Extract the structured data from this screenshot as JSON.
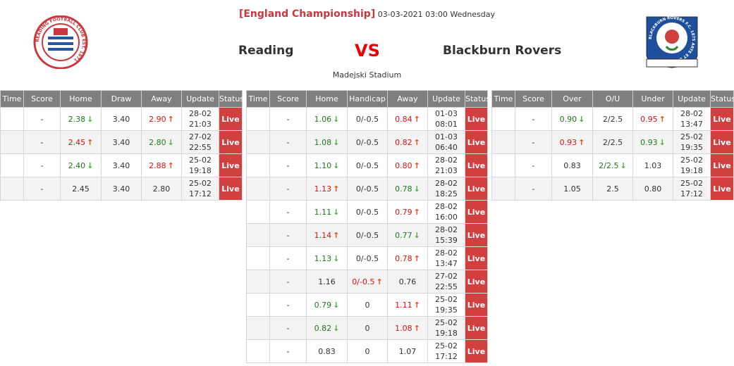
{
  "match": {
    "league": "[England Championship]",
    "datetime": "03-03-2021 03:00 Wednesday",
    "home": "Reading",
    "vs": "VS",
    "away": "Blackburn Rovers",
    "venue": "Madejski Stadium",
    "home_logo_text": "READING FOOTBALL CLUB EST. 1871",
    "away_logo_text": "BLACKBURN ROVERS F.C. 1875 ARTE ET LABORE"
  },
  "colors": {
    "up": "#e01010",
    "down": "#1f7a1f",
    "live": "#d23f3f",
    "header": "#7f7f7f",
    "league": "#c8383e"
  },
  "tables": [
    {
      "name": "1x2",
      "headers": [
        "Time",
        "Score",
        "Home",
        "Draw",
        "Away",
        "Update",
        "Status"
      ],
      "rows": [
        [
          [
            "",
            ""
          ],
          [
            "-",
            ""
          ],
          [
            "2.38",
            "down"
          ],
          [
            "3.40",
            ""
          ],
          [
            "2.90",
            "up"
          ],
          [
            "28-02|21:03",
            ""
          ],
          [
            "Live",
            ""
          ]
        ],
        [
          [
            "",
            ""
          ],
          [
            "-",
            ""
          ],
          [
            "2.45",
            "up"
          ],
          [
            "3.40",
            ""
          ],
          [
            "2.80",
            "down"
          ],
          [
            "27-02|22:55",
            ""
          ],
          [
            "Live",
            ""
          ]
        ],
        [
          [
            "",
            ""
          ],
          [
            "-",
            ""
          ],
          [
            "2.40",
            "down"
          ],
          [
            "3.40",
            ""
          ],
          [
            "2.88",
            "up"
          ],
          [
            "25-02|19:18",
            ""
          ],
          [
            "Live",
            ""
          ]
        ],
        [
          [
            "",
            ""
          ],
          [
            "-",
            ""
          ],
          [
            "2.45",
            ""
          ],
          [
            "3.40",
            ""
          ],
          [
            "2.80",
            ""
          ],
          [
            "25-02|17:12",
            ""
          ],
          [
            "Live",
            ""
          ]
        ]
      ]
    },
    {
      "name": "handicap",
      "headers": [
        "Time",
        "Score",
        "Home",
        "Handicap",
        "Away",
        "Update",
        "Status"
      ],
      "rows": [
        [
          [
            "",
            ""
          ],
          [
            "-",
            ""
          ],
          [
            "1.06",
            "down"
          ],
          [
            "0/-0.5",
            ""
          ],
          [
            "0.84",
            "up"
          ],
          [
            "01-03|08:01",
            ""
          ],
          [
            "Live",
            ""
          ]
        ],
        [
          [
            "",
            ""
          ],
          [
            "-",
            ""
          ],
          [
            "1.08",
            "down"
          ],
          [
            "0/-0.5",
            ""
          ],
          [
            "0.82",
            "up"
          ],
          [
            "01-03|06:40",
            ""
          ],
          [
            "Live",
            ""
          ]
        ],
        [
          [
            "",
            ""
          ],
          [
            "-",
            ""
          ],
          [
            "1.10",
            "down"
          ],
          [
            "0/-0.5",
            ""
          ],
          [
            "0.80",
            "up"
          ],
          [
            "28-02|21:03",
            ""
          ],
          [
            "Live",
            ""
          ]
        ],
        [
          [
            "",
            ""
          ],
          [
            "-",
            ""
          ],
          [
            "1.13",
            "up"
          ],
          [
            "0/-0.5",
            ""
          ],
          [
            "0.78",
            "down"
          ],
          [
            "28-02|18:25",
            ""
          ],
          [
            "Live",
            ""
          ]
        ],
        [
          [
            "",
            ""
          ],
          [
            "-",
            ""
          ],
          [
            "1.11",
            "down"
          ],
          [
            "0/-0.5",
            ""
          ],
          [
            "0.79",
            "up"
          ],
          [
            "28-02|16:00",
            ""
          ],
          [
            "Live",
            ""
          ]
        ],
        [
          [
            "",
            ""
          ],
          [
            "-",
            ""
          ],
          [
            "1.14",
            "up"
          ],
          [
            "0/-0.5",
            ""
          ],
          [
            "0.77",
            "down"
          ],
          [
            "28-02|15:39",
            ""
          ],
          [
            "Live",
            ""
          ]
        ],
        [
          [
            "",
            ""
          ],
          [
            "-",
            ""
          ],
          [
            "1.13",
            "down"
          ],
          [
            "0/-0.5",
            ""
          ],
          [
            "0.78",
            "up"
          ],
          [
            "28-02|13:47",
            ""
          ],
          [
            "Live",
            ""
          ]
        ],
        [
          [
            "",
            ""
          ],
          [
            "-",
            ""
          ],
          [
            "1.16",
            ""
          ],
          [
            "0/-0.5",
            "up"
          ],
          [
            "0.76",
            ""
          ],
          [
            "27-02|22:55",
            ""
          ],
          [
            "Live",
            ""
          ]
        ],
        [
          [
            "",
            ""
          ],
          [
            "-",
            ""
          ],
          [
            "0.79",
            "down"
          ],
          [
            "0",
            ""
          ],
          [
            "1.11",
            "up"
          ],
          [
            "25-02|19:35",
            ""
          ],
          [
            "Live",
            ""
          ]
        ],
        [
          [
            "",
            ""
          ],
          [
            "-",
            ""
          ],
          [
            "0.82",
            "down"
          ],
          [
            "0",
            ""
          ],
          [
            "1.08",
            "up"
          ],
          [
            "25-02|19:18",
            ""
          ],
          [
            "Live",
            ""
          ]
        ],
        [
          [
            "",
            ""
          ],
          [
            "-",
            ""
          ],
          [
            "0.83",
            ""
          ],
          [
            "0",
            ""
          ],
          [
            "1.07",
            ""
          ],
          [
            "25-02|17:12",
            ""
          ],
          [
            "Live",
            ""
          ]
        ]
      ]
    },
    {
      "name": "over-under",
      "headers": [
        "Time",
        "Score",
        "Over",
        "O/U",
        "Under",
        "Update",
        "Status"
      ],
      "rows": [
        [
          [
            "",
            ""
          ],
          [
            "-",
            ""
          ],
          [
            "0.90",
            "down"
          ],
          [
            "2/2.5",
            ""
          ],
          [
            "0.95",
            "up"
          ],
          [
            "28-02|13:47",
            ""
          ],
          [
            "Live",
            ""
          ]
        ],
        [
          [
            "",
            ""
          ],
          [
            "-",
            ""
          ],
          [
            "0.93",
            "up"
          ],
          [
            "2/2.5",
            ""
          ],
          [
            "0.93",
            "down"
          ],
          [
            "25-02|19:35",
            ""
          ],
          [
            "Live",
            ""
          ]
        ],
        [
          [
            "",
            ""
          ],
          [
            "-",
            ""
          ],
          [
            "0.83",
            ""
          ],
          [
            "2/2.5",
            "down"
          ],
          [
            "1.03",
            ""
          ],
          [
            "25-02|19:18",
            ""
          ],
          [
            "Live",
            ""
          ]
        ],
        [
          [
            "",
            ""
          ],
          [
            "-",
            ""
          ],
          [
            "1.05",
            ""
          ],
          [
            "2.5",
            ""
          ],
          [
            "0.80",
            ""
          ],
          [
            "25-02|17:12",
            ""
          ],
          [
            "Live",
            ""
          ]
        ]
      ]
    }
  ]
}
